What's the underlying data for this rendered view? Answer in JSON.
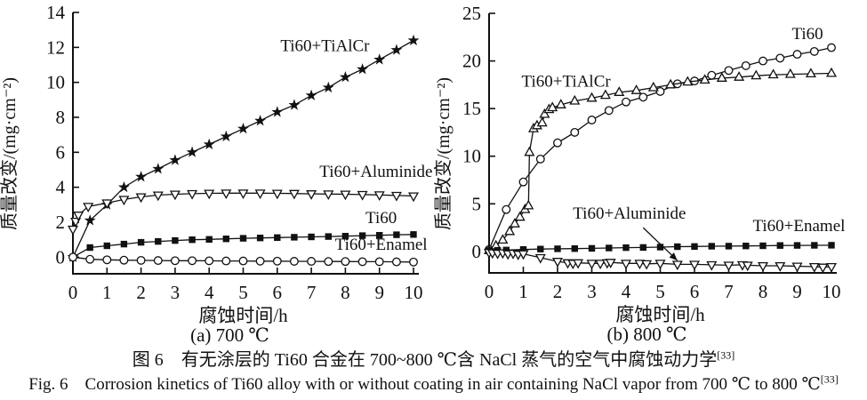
{
  "figure": {
    "caption_zh": "图 6　有无涂层的 Ti60 合金在 700~800 ℃含 NaCl 蒸气的空气中腐蚀动力学",
    "caption_zh_ref": "[33]",
    "caption_en": "Fig. 6　Corrosion kinetics of Ti60 alloy with or without coating in air containing NaCl vapor from 700 ℃ to 800 ℃",
    "caption_en_ref": "[33]",
    "line_color": "#111111",
    "background": "#ffffff"
  },
  "chart_data": [
    {
      "type": "line",
      "panel": "a",
      "subcaption": "(a) 700 ℃",
      "xlabel": "腐蚀时间/h",
      "ylabel": "质量改变/(mg·cm⁻²)",
      "xlim": [
        0,
        10
      ],
      "ylim": [
        -0.95,
        14
      ],
      "xticks": [
        0,
        1,
        2,
        3,
        4,
        5,
        6,
        7,
        8,
        9,
        10
      ],
      "yticks": [
        0,
        2,
        4,
        6,
        8,
        10,
        12,
        14
      ],
      "grid": false,
      "legend": "inline-labels",
      "series": [
        {
          "name": "Ti60+TiAlCr",
          "marker": "star",
          "x": [
            0,
            0.5,
            1,
            1.5,
            2,
            2.5,
            3,
            3.5,
            4,
            4.5,
            5,
            5.5,
            6,
            6.5,
            7,
            7.5,
            8,
            8.5,
            9,
            9.5,
            10
          ],
          "y": [
            0,
            2.1,
            3.0,
            4.0,
            4.6,
            5.05,
            5.55,
            6.0,
            6.45,
            6.9,
            7.35,
            7.8,
            8.3,
            8.7,
            9.25,
            9.7,
            10.3,
            10.75,
            11.3,
            11.85,
            12.4
          ]
        },
        {
          "name": "Ti60+Aluminide",
          "marker": "triangle-down",
          "x": [
            0,
            0.08,
            0.16,
            0.45,
            1,
            1.5,
            2,
            2.5,
            3,
            3.5,
            4,
            4.5,
            5,
            5.5,
            6,
            6.5,
            7,
            7.5,
            8,
            8.5,
            9,
            9.5,
            10
          ],
          "y": [
            1.6,
            2.05,
            2.4,
            2.9,
            3.1,
            3.3,
            3.45,
            3.55,
            3.6,
            3.63,
            3.65,
            3.66,
            3.66,
            3.66,
            3.65,
            3.64,
            3.62,
            3.61,
            3.6,
            3.58,
            3.56,
            3.53,
            3.5
          ]
        },
        {
          "name": "Ti60",
          "marker": "square",
          "x": [
            0,
            0.5,
            1,
            1.5,
            2,
            2.5,
            3,
            3.5,
            4,
            4.5,
            5,
            5.5,
            6,
            6.5,
            7,
            7.5,
            8,
            8.5,
            9,
            9.5,
            10
          ],
          "y": [
            0,
            0.55,
            0.65,
            0.75,
            0.85,
            0.9,
            0.95,
            1.0,
            1.02,
            1.05,
            1.08,
            1.1,
            1.12,
            1.14,
            1.16,
            1.18,
            1.2,
            1.23,
            1.25,
            1.28,
            1.3
          ]
        },
        {
          "name": "Ti60+Enamel",
          "marker": "circle",
          "x": [
            0,
            0.5,
            1,
            1.5,
            2,
            2.5,
            3,
            3.5,
            4,
            4.5,
            5,
            5.5,
            6,
            6.5,
            7,
            7.5,
            8,
            8.5,
            9,
            9.5,
            10
          ],
          "y": [
            0,
            -0.12,
            -0.15,
            -0.17,
            -0.18,
            -0.19,
            -0.2,
            -0.2,
            -0.21,
            -0.22,
            -0.22,
            -0.23,
            -0.23,
            -0.24,
            -0.24,
            -0.25,
            -0.25,
            -0.26,
            -0.26,
            -0.27,
            -0.28
          ]
        }
      ],
      "labels": [
        {
          "text": "Ti60+TiAlCr",
          "x": 7.4,
          "y": 11.8
        },
        {
          "text": "Ti60+Aluminide",
          "x": 8.9,
          "y": 4.6
        },
        {
          "text": "Ti60",
          "x": 9.05,
          "y": 1.95
        },
        {
          "text": "Ti60+Enamel",
          "x": 9.05,
          "y": 0.42
        }
      ]
    },
    {
      "type": "line",
      "panel": "b",
      "subcaption": "(b) 800 ℃",
      "xlabel": "腐蚀时间/h",
      "ylabel": "质量改变/(mg·cm⁻²)",
      "xlim": [
        0,
        10
      ],
      "ylim": [
        -2.25,
        25
      ],
      "xticks": [
        0,
        1,
        2,
        3,
        4,
        5,
        6,
        7,
        8,
        9,
        10
      ],
      "yticks": [
        0,
        5,
        10,
        15,
        20,
        25
      ],
      "grid": false,
      "legend": "inline-labels",
      "series": [
        {
          "name": "Ti60",
          "marker": "circle",
          "x": [
            0,
            0.5,
            1,
            1.5,
            2,
            2.5,
            3,
            3.5,
            4,
            4.5,
            5,
            5.5,
            6,
            6.5,
            7,
            7.5,
            8,
            8.5,
            9,
            9.5,
            10
          ],
          "y": [
            0.2,
            4.4,
            7.3,
            9.7,
            11.4,
            12.5,
            13.8,
            14.8,
            15.7,
            16.2,
            16.8,
            17.6,
            17.9,
            18.5,
            19.0,
            19.5,
            20.0,
            20.3,
            20.7,
            21.0,
            21.4
          ]
        },
        {
          "name": "Ti60+TiAlCr",
          "marker": "triangle-up",
          "x": [
            0,
            0.2,
            0.4,
            0.6,
            0.75,
            0.9,
            1.05,
            1.15,
            1.18,
            1.3,
            1.4,
            1.55,
            1.62,
            1.75,
            1.85,
            2.1,
            2.5,
            3.0,
            3.4,
            3.8,
            4.3,
            4.8,
            5.3,
            5.8,
            6.3,
            6.8,
            7.3,
            7.8,
            8.3,
            8.8,
            9.4,
            10
          ],
          "y": [
            0.1,
            0.6,
            1.2,
            2.1,
            2.9,
            3.6,
            4.4,
            4.8,
            10.4,
            12.9,
            13.2,
            13.5,
            14.4,
            14.9,
            15.1,
            15.4,
            15.8,
            16.1,
            16.4,
            16.7,
            16.9,
            17.2,
            17.5,
            17.8,
            18.0,
            18.2,
            18.3,
            18.45,
            18.55,
            18.6,
            18.65,
            18.7
          ]
        },
        {
          "name": "Ti60+Enamel",
          "marker": "square",
          "x": [
            0,
            0.25,
            0.5,
            1,
            1.5,
            2,
            2.5,
            3,
            3.5,
            4,
            4.5,
            5,
            5.5,
            6,
            6.5,
            7,
            7.5,
            8,
            8.5,
            9,
            9.5,
            10
          ],
          "y": [
            0.1,
            0.12,
            0.15,
            0.2,
            0.25,
            0.28,
            0.3,
            0.33,
            0.36,
            0.4,
            0.42,
            0.46,
            0.5,
            0.52,
            0.55,
            0.56,
            0.58,
            0.6,
            0.62,
            0.63,
            0.64,
            0.65
          ]
        },
        {
          "name": "Ti60+Aluminide",
          "marker": "triangle-down",
          "x": [
            0,
            0.1,
            0.25,
            0.4,
            0.55,
            0.7,
            0.85,
            1.0,
            1.5,
            2.0,
            2.3,
            2.45,
            2.6,
            3.0,
            3.25,
            3.45,
            3.55,
            4.0,
            4.4,
            4.6,
            5.0,
            5.5,
            6.0,
            6.5,
            7.0,
            7.4,
            7.55,
            8.0,
            8.5,
            9.0,
            9.5,
            9.75,
            10
          ],
          "y": [
            -0.1,
            -0.15,
            -0.2,
            -0.15,
            -0.25,
            -0.2,
            -0.3,
            -0.25,
            -0.65,
            -1.05,
            -1.2,
            -1.25,
            -1.2,
            -1.25,
            -1.25,
            -1.2,
            -1.15,
            -1.25,
            -1.25,
            -1.3,
            -1.25,
            -1.35,
            -1.35,
            -1.4,
            -1.45,
            -1.4,
            -1.45,
            -1.5,
            -1.5,
            -1.55,
            -1.6,
            -1.65,
            -1.6
          ]
        }
      ],
      "labels": [
        {
          "text": "Ti60+TiAlCr",
          "x": 2.25,
          "y": 17.3
        },
        {
          "text": "Ti60",
          "x": 9.3,
          "y": 22.3
        },
        {
          "text": "Ti60+Aluminide",
          "x": 4.1,
          "y": 3.45,
          "arrow": {
            "x1": 4.5,
            "y1": 2.5,
            "x2": 5.5,
            "y2": -0.95
          }
        },
        {
          "text": "Ti60+Enamel",
          "x": 9.05,
          "y": 2.15
        }
      ]
    }
  ]
}
